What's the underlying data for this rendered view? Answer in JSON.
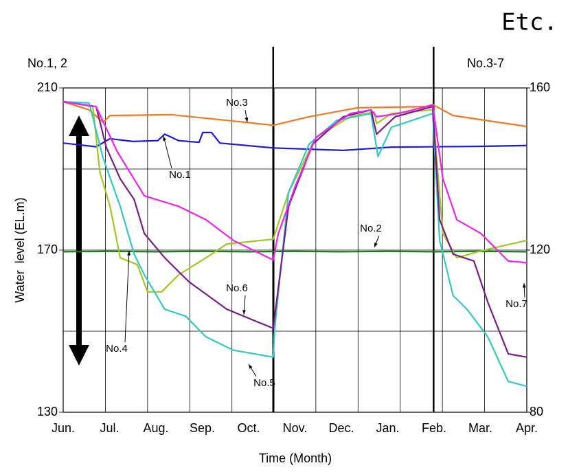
{
  "chart_data": {
    "type": "line",
    "title": "Etc.",
    "y_label": "Water  level (EL.m)",
    "x_label": "Time (Month)",
    "y_axis_title": "No.1, 2",
    "y2_axis_title": "No.3-7",
    "xlim": [
      0,
      10
    ],
    "xticks": [
      {
        "value": 0,
        "label": "Jun."
      },
      {
        "value": 1,
        "label": "Jul."
      },
      {
        "value": 2,
        "label": "Aug."
      },
      {
        "value": 3,
        "label": "Sep."
      },
      {
        "value": 4,
        "label": "Oct."
      },
      {
        "value": 5,
        "label": "Nov."
      },
      {
        "value": 6,
        "label": "Dec."
      },
      {
        "value": 7,
        "label": "Jan."
      },
      {
        "value": 8,
        "label": "Feb."
      },
      {
        "value": 9,
        "label": "Mar."
      },
      {
        "value": 10,
        "label": "Apr."
      }
    ],
    "xgrid": [
      0.91,
      1.82,
      2.73,
      3.64,
      4.55,
      5.45,
      6.36,
      7.27,
      8.18,
      9.09
    ],
    "dividers": [
      4.53,
      7.99
    ],
    "ylim": [
      130,
      210
    ],
    "yticks": [
      130,
      170,
      210
    ],
    "ygrid": [
      150,
      190
    ],
    "y2lim": [
      80,
      160
    ],
    "y2ticks": [
      80,
      120,
      160
    ],
    "grid": true,
    "series": [
      {
        "name": "No.1",
        "color": "#1a1adc",
        "x": [
          0,
          0.71,
          1.01,
          1.5,
          2.04,
          2.19,
          2.49,
          2.93,
          3.01,
          3.2,
          3.38,
          4.53,
          6.04,
          7.08,
          9.01,
          10
        ],
        "values": [
          196.4,
          195.5,
          197.5,
          196.8,
          197.0,
          198.6,
          197.0,
          196.6,
          199.0,
          199.0,
          196.4,
          195.2,
          194.6,
          195.4,
          195.6,
          195.8
        ]
      },
      {
        "name": "No.2",
        "color": "#1a7a1a",
        "x": [
          0,
          1,
          2,
          3,
          4,
          5,
          6,
          7,
          8,
          9,
          10
        ],
        "values": [
          169.6,
          169.7,
          169.6,
          169.7,
          169.6,
          169.7,
          169.6,
          169.7,
          169.6,
          169.7,
          169.6
        ]
      },
      {
        "name": "No.3",
        "color": "#f07820",
        "axis": "y2",
        "x": [
          0,
          0.56,
          0.86,
          1.01,
          2.34,
          3.53,
          4.53,
          5.3,
          6.34,
          7.82,
          7.97,
          8.41,
          10
        ],
        "values": [
          156.6,
          154.6,
          151.5,
          153.2,
          153.4,
          152.0,
          150.8,
          152.9,
          155.1,
          155.4,
          155.9,
          153.2,
          150.5
        ]
      },
      {
        "name": "No.4",
        "color": "#a0c820",
        "axis": "y2",
        "x": [
          0,
          0.64,
          0.79,
          1.01,
          1.23,
          1.6,
          1.82,
          2.12,
          2.49,
          3.08,
          3.53,
          4.53,
          4.86,
          5.45,
          6.19,
          6.71,
          6.76,
          7.08,
          7.97,
          8.19,
          8.49,
          9.01,
          10
        ],
        "values": [
          156.6,
          155.4,
          139.3,
          130.8,
          118.1,
          116.4,
          109.7,
          109.7,
          113.9,
          118.1,
          121.5,
          122.7,
          134.2,
          147.8,
          152.9,
          154.1,
          151.2,
          153.7,
          154.6,
          124.1,
          118.1,
          119.8,
          122.4
        ]
      },
      {
        "name": "No.5",
        "color": "#30c8c8",
        "axis": "y2",
        "x": [
          0,
          0.56,
          0.86,
          1.23,
          1.53,
          1.75,
          2.19,
          2.64,
          3.08,
          3.67,
          4.53,
          4.56,
          4.86,
          5.3,
          5.9,
          6.64,
          6.79,
          7.08,
          7.97,
          8.12,
          8.41,
          8.71,
          9.16,
          9.6,
          10
        ],
        "values": [
          156.6,
          156.3,
          142.7,
          130.8,
          119.0,
          113.9,
          105.4,
          103.7,
          98.6,
          95.3,
          93.6,
          100.3,
          134.2,
          146.1,
          152.0,
          153.7,
          143.1,
          150.3,
          153.7,
          122.4,
          108.8,
          105.4,
          98.6,
          87.6,
          86.4
        ]
      },
      {
        "name": "No.6",
        "color": "#7a1a8a",
        "axis": "y2",
        "x": [
          0,
          0.71,
          0.93,
          1.23,
          1.53,
          1.75,
          2.19,
          2.71,
          3.53,
          4.53,
          4.86,
          5.38,
          6.04,
          6.64,
          6.76,
          7.16,
          7.97,
          8.12,
          8.41,
          8.86,
          9.16,
          9.6,
          10
        ],
        "values": [
          156.6,
          155.4,
          145.3,
          137.6,
          132.5,
          124.1,
          118.1,
          112.2,
          105.4,
          100.7,
          130.8,
          146.1,
          152.9,
          154.6,
          148.6,
          152.9,
          155.4,
          127.5,
          119.0,
          117.3,
          107.1,
          94.4,
          93.6
        ]
      },
      {
        "name": "No.7",
        "color": "#f020f0",
        "axis": "y2",
        "x": [
          0,
          0.71,
          1.16,
          1.75,
          2.49,
          3.08,
          3.67,
          4.27,
          4.53,
          4.64,
          5.01,
          5.45,
          6.19,
          6.64,
          6.76,
          7.23,
          7.97,
          8.19,
          8.49,
          9.01,
          9.6,
          10
        ],
        "values": [
          156.6,
          155.4,
          144.4,
          133.4,
          130.8,
          127.5,
          122.4,
          119.0,
          117.6,
          124.1,
          135.9,
          147.8,
          153.7,
          154.6,
          152.9,
          153.7,
          155.8,
          137.6,
          127.5,
          124.1,
          117.3,
          116.9
        ]
      }
    ],
    "annotations": [
      "No.3",
      "No.1",
      "No.2",
      "No.6",
      "No.4",
      "No.5",
      "No.7"
    ]
  }
}
